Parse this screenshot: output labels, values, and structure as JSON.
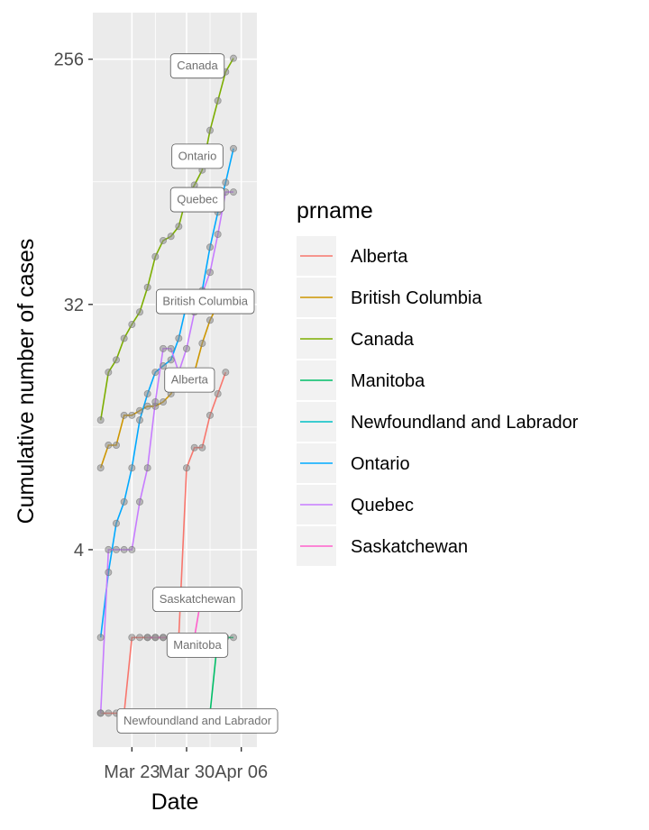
{
  "chart_data": {
    "type": "line",
    "title": "",
    "xlabel": "Date",
    "ylabel": "Cumulative number of cases",
    "y_scale": "log2",
    "ylim": [
      0.75,
      380
    ],
    "xlim": [
      "2020-03-18",
      "2020-04-08"
    ],
    "x_ticks": [
      {
        "label": "Mar 23",
        "date": "2020-03-23"
      },
      {
        "label": "Mar 30",
        "date": "2020-03-30"
      },
      {
        "label": "Apr 06",
        "date": "2020-04-06"
      }
    ],
    "y_ticks": [
      {
        "label": "4",
        "value": 4
      },
      {
        "label": "32",
        "value": 32
      },
      {
        "label": "256",
        "value": 256
      }
    ],
    "grid": true,
    "legend": {
      "title": "prname",
      "position": "right"
    },
    "series": [
      {
        "name": "Alberta",
        "color": "#F8766D",
        "points": [
          [
            "2020-03-19",
            1
          ],
          [
            "2020-03-20",
            1
          ],
          [
            "2020-03-21",
            1
          ],
          [
            "2020-03-22",
            1
          ],
          [
            "2020-03-23",
            1.9
          ],
          [
            "2020-03-24",
            1.9
          ],
          [
            "2020-03-25",
            1.9
          ],
          [
            "2020-03-26",
            1.9
          ],
          [
            "2020-03-27",
            1.9
          ],
          [
            "2020-03-28",
            1.9
          ],
          [
            "2020-03-29",
            1.9
          ],
          [
            "2020-03-30",
            8
          ],
          [
            "2020-03-31",
            9.5
          ],
          [
            "2020-04-01",
            9.5
          ],
          [
            "2020-04-02",
            12.5
          ],
          [
            "2020-04-03",
            15
          ],
          [
            "2020-04-04",
            18
          ]
        ],
        "label": "Alberta"
      },
      {
        "name": "British Columbia",
        "color": "#CD9600",
        "points": [
          [
            "2020-03-19",
            8
          ],
          [
            "2020-03-20",
            9.7
          ],
          [
            "2020-03-21",
            9.7
          ],
          [
            "2020-03-22",
            12.5
          ],
          [
            "2020-03-23",
            12.5
          ],
          [
            "2020-03-24",
            13
          ],
          [
            "2020-03-25",
            13.5
          ],
          [
            "2020-03-26",
            13.5
          ],
          [
            "2020-03-27",
            14
          ],
          [
            "2020-03-28",
            15
          ],
          [
            "2020-03-29",
            17
          ],
          [
            "2020-03-30",
            18
          ],
          [
            "2020-03-31",
            18
          ],
          [
            "2020-04-01",
            23
          ],
          [
            "2020-04-02",
            28
          ],
          [
            "2020-04-03",
            32
          ],
          [
            "2020-04-04",
            35
          ],
          [
            "2020-04-05",
            35
          ],
          [
            "2020-04-06",
            35
          ]
        ],
        "label": "British Columbia"
      },
      {
        "name": "Canada",
        "color": "#7CAE00",
        "points": [
          [
            "2020-03-19",
            12
          ],
          [
            "2020-03-20",
            18
          ],
          [
            "2020-03-21",
            20
          ],
          [
            "2020-03-22",
            24
          ],
          [
            "2020-03-23",
            27
          ],
          [
            "2020-03-24",
            30
          ],
          [
            "2020-03-25",
            37
          ],
          [
            "2020-03-26",
            48
          ],
          [
            "2020-03-27",
            55
          ],
          [
            "2020-03-28",
            57
          ],
          [
            "2020-03-29",
            62
          ],
          [
            "2020-03-30",
            80
          ],
          [
            "2020-03-31",
            88
          ],
          [
            "2020-04-01",
            100
          ],
          [
            "2020-04-02",
            140
          ],
          [
            "2020-04-03",
            180
          ],
          [
            "2020-04-04",
            230
          ],
          [
            "2020-04-05",
            258
          ]
        ],
        "label": "Canada"
      },
      {
        "name": "Manitoba",
        "color": "#00BE67",
        "points": [
          [
            "2020-03-26",
            1
          ],
          [
            "2020-03-27",
            1
          ],
          [
            "2020-03-28",
            1
          ],
          [
            "2020-03-29",
            1
          ],
          [
            "2020-03-30",
            1
          ],
          [
            "2020-03-31",
            1
          ],
          [
            "2020-04-01",
            1
          ],
          [
            "2020-04-02",
            1
          ],
          [
            "2020-04-03",
            1.9
          ],
          [
            "2020-04-04",
            1.9
          ],
          [
            "2020-04-05",
            1.9
          ]
        ],
        "label": "Manitoba"
      },
      {
        "name": "Newfoundland and Labrador",
        "color": "#00BFC4",
        "points": [
          [
            "2020-03-26",
            1
          ],
          [
            "2020-03-27",
            1
          ],
          [
            "2020-03-28",
            1
          ],
          [
            "2020-03-29",
            1
          ],
          [
            "2020-03-30",
            1
          ],
          [
            "2020-03-31",
            1
          ],
          [
            "2020-04-01",
            1
          ],
          [
            "2020-04-02",
            1
          ],
          [
            "2020-04-03",
            1
          ],
          [
            "2020-04-04",
            1
          ],
          [
            "2020-04-05",
            1
          ]
        ],
        "label": "Newfoundland and Labrador"
      },
      {
        "name": "Ontario",
        "color": "#00A9FF",
        "points": [
          [
            "2020-03-19",
            1.9
          ],
          [
            "2020-03-20",
            3.3
          ],
          [
            "2020-03-21",
            5
          ],
          [
            "2020-03-22",
            6
          ],
          [
            "2020-03-23",
            8
          ],
          [
            "2020-03-24",
            12
          ],
          [
            "2020-03-25",
            15
          ],
          [
            "2020-03-26",
            18
          ],
          [
            "2020-03-27",
            19
          ],
          [
            "2020-03-28",
            20
          ],
          [
            "2020-03-29",
            24
          ],
          [
            "2020-03-30",
            32
          ],
          [
            "2020-03-31",
            33
          ],
          [
            "2020-04-01",
            36
          ],
          [
            "2020-04-02",
            52
          ],
          [
            "2020-04-03",
            70
          ],
          [
            "2020-04-04",
            90
          ],
          [
            "2020-04-05",
            120
          ]
        ],
        "label": "Ontario"
      },
      {
        "name": "Quebec",
        "color": "#C77CFF",
        "points": [
          [
            "2020-03-19",
            1
          ],
          [
            "2020-03-20",
            4
          ],
          [
            "2020-03-21",
            4
          ],
          [
            "2020-03-22",
            4
          ],
          [
            "2020-03-23",
            4
          ],
          [
            "2020-03-24",
            6
          ],
          [
            "2020-03-25",
            8
          ],
          [
            "2020-03-26",
            14
          ],
          [
            "2020-03-27",
            22
          ],
          [
            "2020-03-28",
            22
          ],
          [
            "2020-03-29",
            18
          ],
          [
            "2020-03-30",
            22
          ],
          [
            "2020-03-31",
            30
          ],
          [
            "2020-04-01",
            35
          ],
          [
            "2020-04-02",
            42
          ],
          [
            "2020-04-03",
            58
          ],
          [
            "2020-04-04",
            83
          ],
          [
            "2020-04-05",
            83
          ]
        ],
        "label": "Quebec"
      },
      {
        "name": "Saskatchewan",
        "color": "#FF61CC",
        "points": [
          [
            "2020-03-25",
            1.9
          ],
          [
            "2020-03-26",
            1.9
          ],
          [
            "2020-03-27",
            1.9
          ],
          [
            "2020-03-28",
            1.9
          ],
          [
            "2020-03-29",
            1.9
          ],
          [
            "2020-03-30",
            1.9
          ],
          [
            "2020-03-31",
            1.9
          ],
          [
            "2020-04-01",
            2.8
          ],
          [
            "2020-04-02",
            2.8
          ],
          [
            "2020-04-03",
            2.8
          ],
          [
            "2020-04-04",
            2.8
          ],
          [
            "2020-04-05",
            2.8
          ]
        ],
        "label": "Saskatchewan"
      }
    ]
  }
}
